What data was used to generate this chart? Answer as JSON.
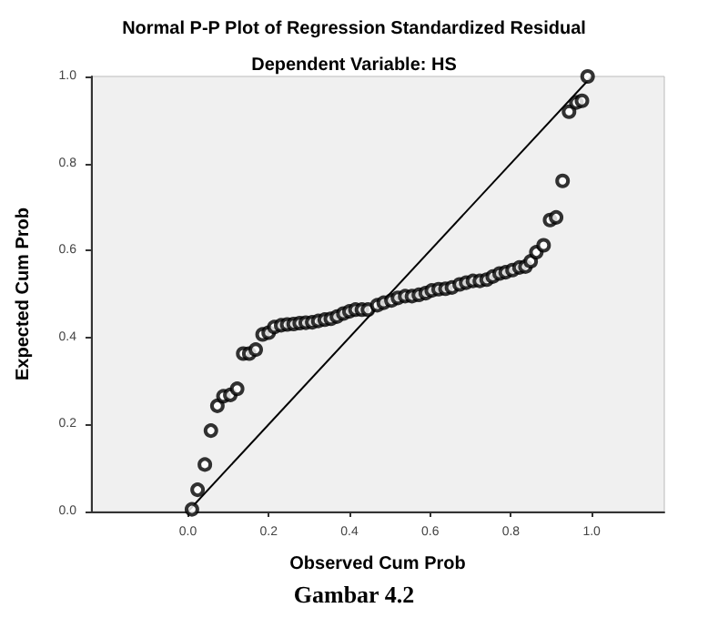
{
  "chart_data": {
    "type": "scatter",
    "title": "Normal P-P Plot of Regression Standardized Residual",
    "subtitle": "Dependent Variable: HS",
    "xlabel": "Observed Cum Prob",
    "ylabel": "Expected Cum Prob",
    "annotations": [
      "Gambar 4.2"
    ],
    "xlim": [
      -0.24,
      1.18
    ],
    "ylim": [
      0,
      1
    ],
    "xticks": [
      {
        "value": 0,
        "label": "0.0"
      },
      {
        "value": 0.2,
        "label": "0.2"
      },
      {
        "value": 0.4,
        "label": "0.4"
      },
      {
        "value": 0.6,
        "label": "0.6"
      },
      {
        "value": 0.8,
        "label": "0.8"
      },
      {
        "value": 1,
        "label": "1.0"
      }
    ],
    "yticks": [
      {
        "value": 0,
        "label": "0.0"
      },
      {
        "value": 0.2,
        "label": "0.2"
      },
      {
        "value": 0.4,
        "label": "0.4"
      },
      {
        "value": 0.6,
        "label": "0.6"
      },
      {
        "value": 0.8,
        "label": "0.8"
      },
      {
        "value": 1,
        "label": "1.0"
      }
    ],
    "grid": false,
    "marker": "circle",
    "series": [
      {
        "color": "#000000",
        "x": [
          0.01,
          0.024,
          0.042,
          0.057,
          0.073,
          0.088,
          0.105,
          0.122,
          0.137,
          0.152,
          0.168,
          0.185,
          0.2,
          0.214,
          0.231,
          0.246,
          0.262,
          0.277,
          0.292,
          0.308,
          0.323,
          0.339,
          0.354,
          0.369,
          0.385,
          0.4,
          0.415,
          0.431,
          0.446,
          0.469,
          0.485,
          0.504,
          0.52,
          0.538,
          0.555,
          0.572,
          0.589,
          0.604,
          0.621,
          0.638,
          0.654,
          0.673,
          0.689,
          0.706,
          0.723,
          0.74,
          0.755,
          0.772,
          0.787,
          0.804,
          0.821,
          0.836,
          0.849,
          0.863,
          0.881,
          0.897,
          0.912,
          0.928,
          0.944,
          0.962,
          0.976,
          0.99
        ],
        "values": [
          0.005,
          0.05,
          0.108,
          0.186,
          0.243,
          0.265,
          0.268,
          0.282,
          0.363,
          0.363,
          0.372,
          0.407,
          0.411,
          0.424,
          0.428,
          0.43,
          0.431,
          0.433,
          0.434,
          0.435,
          0.438,
          0.441,
          0.443,
          0.448,
          0.455,
          0.46,
          0.464,
          0.464,
          0.464,
          0.474,
          0.48,
          0.485,
          0.491,
          0.495,
          0.495,
          0.498,
          0.502,
          0.508,
          0.511,
          0.512,
          0.515,
          0.522,
          0.526,
          0.53,
          0.53,
          0.533,
          0.54,
          0.547,
          0.55,
          0.555,
          0.561,
          0.563,
          0.575,
          0.596,
          0.612,
          0.67,
          0.676,
          0.76,
          0.919,
          0.94,
          0.944,
          1.0
        ]
      },
      {
        "type": "line",
        "color": "#000000",
        "marker": "none",
        "x": [
          0,
          1
        ],
        "values": [
          0,
          1
        ]
      }
    ]
  }
}
